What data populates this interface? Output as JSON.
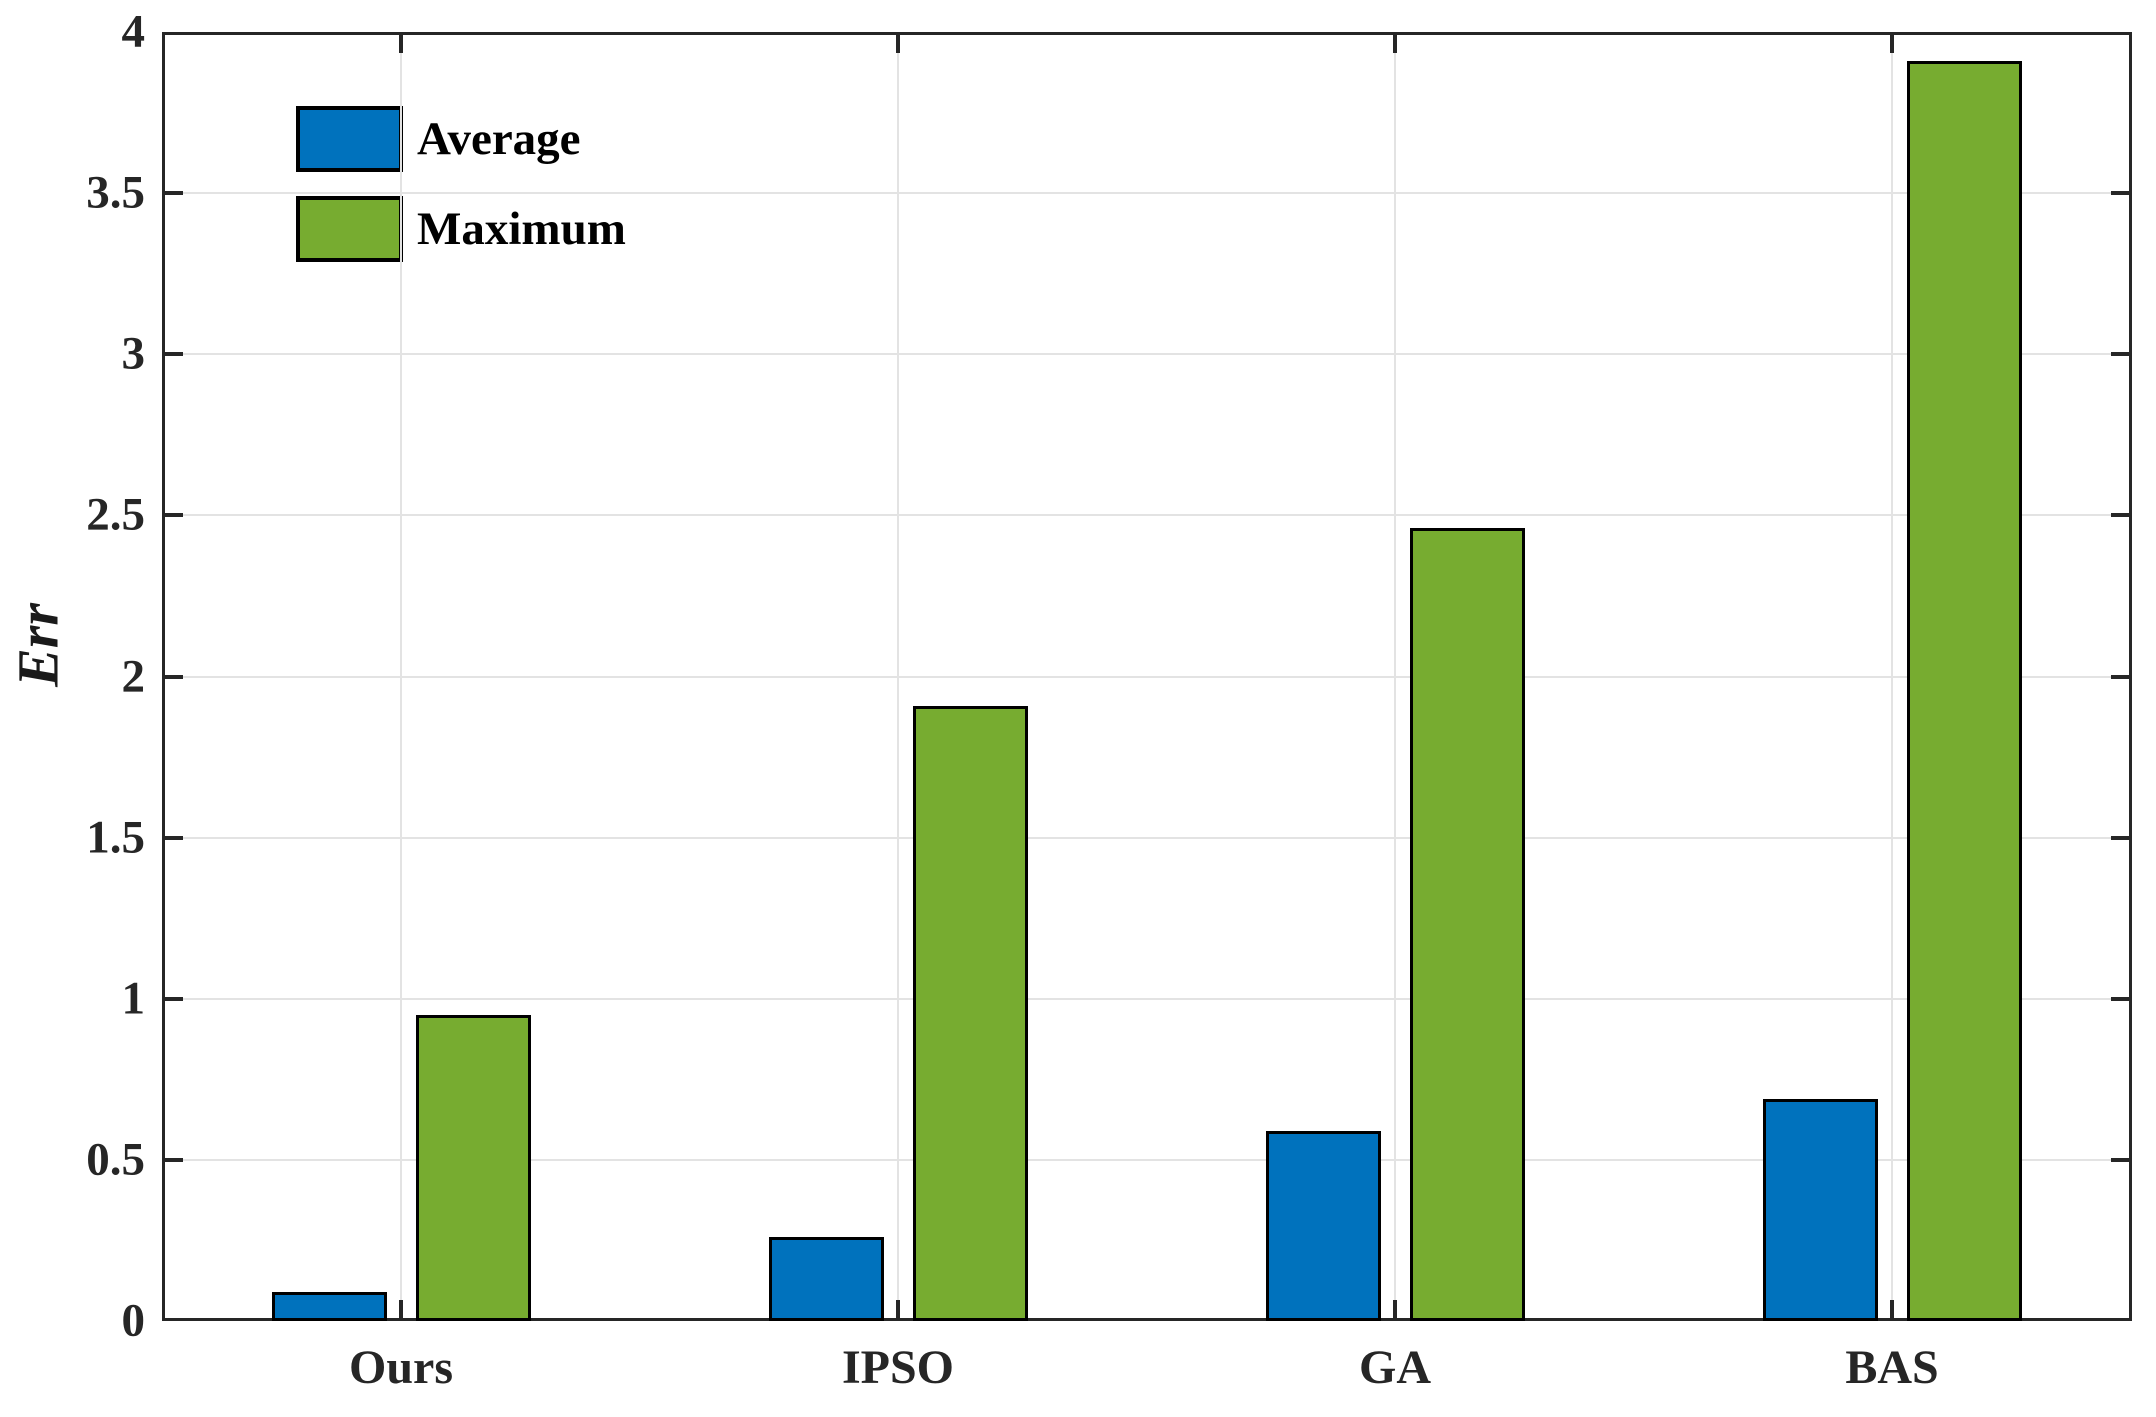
{
  "chart_data": {
    "type": "bar",
    "categories": [
      "Ours",
      "IPSO",
      "GA",
      "BAS"
    ],
    "series": [
      {
        "name": "Average",
        "color": "#0072BD",
        "values": [
          0.09,
          0.26,
          0.59,
          0.69
        ]
      },
      {
        "name": "Maximum",
        "color": "#77AC30",
        "values": [
          0.95,
          1.91,
          2.46,
          3.91
        ]
      }
    ],
    "title": "",
    "xlabel": "",
    "ylabel": "Err",
    "ylim": [
      0,
      4
    ],
    "yticks": [
      "0",
      "0.5",
      "1",
      "1.5",
      "2",
      "2.5",
      "3",
      "3.5",
      "4"
    ],
    "grid": "on",
    "grid_color": "#e3e3e3",
    "axis_color": "#262626",
    "bar_edge_color": "#000000",
    "legend_position": "top-left-inside",
    "legend_border": "none"
  }
}
